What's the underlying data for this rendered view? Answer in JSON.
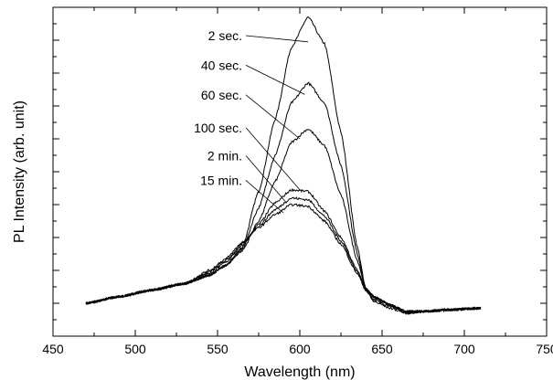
{
  "chart_data": {
    "type": "line",
    "title": "",
    "xlabel": "Wavelength (nm)",
    "ylabel": "PL Intensity (arb. unit)",
    "xlim": [
      450,
      750
    ],
    "ylim": [
      0,
      10
    ],
    "x_ticks": [
      450,
      500,
      550,
      600,
      650,
      700,
      750
    ],
    "y_tick_labels_shown": false,
    "grid": false,
    "legend": "none",
    "line_color": "#000000",
    "series": [
      {
        "name": "2 sec.",
        "x": [
          470,
          490,
          510,
          530,
          545,
          555,
          565,
          575,
          585,
          595,
          605,
          615,
          625,
          635,
          640,
          645,
          655,
          665,
          675,
          690,
          710
        ],
        "y": [
          1.0,
          1.2,
          1.4,
          1.6,
          1.85,
          2.15,
          2.7,
          4.4,
          6.6,
          8.8,
          9.7,
          8.9,
          6.2,
          2.7,
          1.45,
          1.2,
          0.95,
          0.7,
          0.75,
          0.8,
          0.85
        ]
      },
      {
        "name": "40 sec.",
        "x": [
          470,
          490,
          510,
          530,
          545,
          555,
          565,
          575,
          585,
          595,
          605,
          615,
          625,
          635,
          640,
          645,
          655,
          665,
          675,
          690,
          710
        ],
        "y": [
          1.0,
          1.2,
          1.4,
          1.6,
          1.85,
          2.15,
          2.65,
          3.9,
          5.5,
          7.1,
          7.7,
          7.1,
          5.2,
          2.5,
          1.45,
          1.2,
          0.95,
          0.72,
          0.75,
          0.8,
          0.85
        ]
      },
      {
        "name": "60 sec.",
        "x": [
          470,
          490,
          510,
          530,
          545,
          555,
          565,
          575,
          585,
          595,
          605,
          615,
          625,
          635,
          640,
          645,
          655,
          665,
          675,
          690,
          710
        ],
        "y": [
          1.0,
          1.2,
          1.4,
          1.6,
          1.85,
          2.15,
          2.6,
          3.5,
          4.7,
          5.9,
          6.3,
          5.8,
          4.3,
          2.3,
          1.45,
          1.2,
          0.95,
          0.75,
          0.75,
          0.8,
          0.85
        ]
      },
      {
        "name": "100 sec.",
        "x": [
          470,
          490,
          510,
          530,
          545,
          555,
          565,
          575,
          585,
          595,
          605,
          615,
          625,
          635,
          640,
          645,
          655,
          665,
          675,
          690,
          710
        ],
        "y": [
          1.0,
          1.2,
          1.4,
          1.6,
          1.9,
          2.25,
          2.75,
          3.4,
          4.05,
          4.45,
          4.4,
          3.8,
          3.0,
          2.0,
          1.45,
          1.15,
          0.95,
          0.75,
          0.75,
          0.8,
          0.85
        ]
      },
      {
        "name": "2 min.",
        "x": [
          470,
          490,
          510,
          530,
          545,
          555,
          565,
          575,
          585,
          595,
          605,
          615,
          625,
          635,
          640,
          645,
          655,
          665,
          675,
          690,
          710
        ],
        "y": [
          1.0,
          1.2,
          1.4,
          1.6,
          1.95,
          2.3,
          2.8,
          3.35,
          3.85,
          4.2,
          4.15,
          3.65,
          2.9,
          1.95,
          1.45,
          1.1,
          0.9,
          0.75,
          0.75,
          0.8,
          0.85
        ]
      },
      {
        "name": "15 min.",
        "x": [
          470,
          490,
          510,
          530,
          545,
          555,
          565,
          575,
          585,
          595,
          605,
          615,
          625,
          635,
          640,
          645,
          655,
          665,
          675,
          690,
          710
        ],
        "y": [
          1.0,
          1.2,
          1.4,
          1.6,
          2.0,
          2.35,
          2.85,
          3.3,
          3.7,
          4.0,
          3.95,
          3.5,
          2.8,
          1.9,
          1.4,
          1.05,
          0.85,
          0.7,
          0.75,
          0.8,
          0.85
        ]
      }
    ],
    "annotations": [
      "2 sec.",
      "40 sec.",
      "60 sec.",
      "100 sec.",
      "2 min.",
      "15 min."
    ]
  }
}
